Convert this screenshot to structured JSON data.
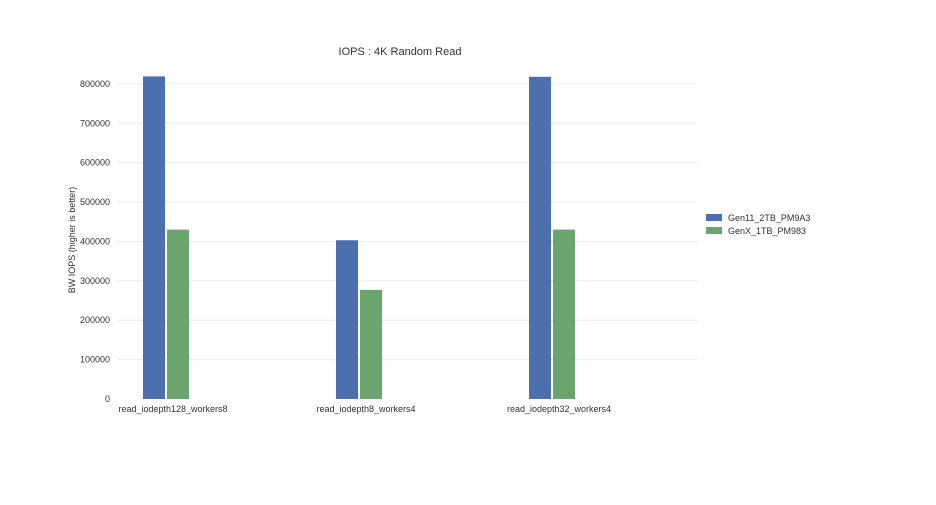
{
  "chart_data": {
    "type": "bar",
    "title": "IOPS : 4K Random Read",
    "xlabel": "",
    "ylabel": "BW IOPS  (higher is better)",
    "categories": [
      "read_iodepth128_workers8",
      "read_iodepth8_workers4",
      "read_iodepth32_workers4"
    ],
    "series": [
      {
        "name": "Gen11_2TB_PM9A3",
        "color": "#4c6fad",
        "values": [
          819000,
          403000,
          818000
        ]
      },
      {
        "name": "GenX_1TB_PM983",
        "color": "#6aa56e",
        "values": [
          430000,
          277000,
          430000
        ]
      }
    ],
    "ylim": [
      0,
      820000
    ],
    "yticks": [
      0,
      100000,
      200000,
      300000,
      400000,
      500000,
      600000,
      700000,
      800000
    ],
    "grid": true,
    "legend": "right"
  }
}
